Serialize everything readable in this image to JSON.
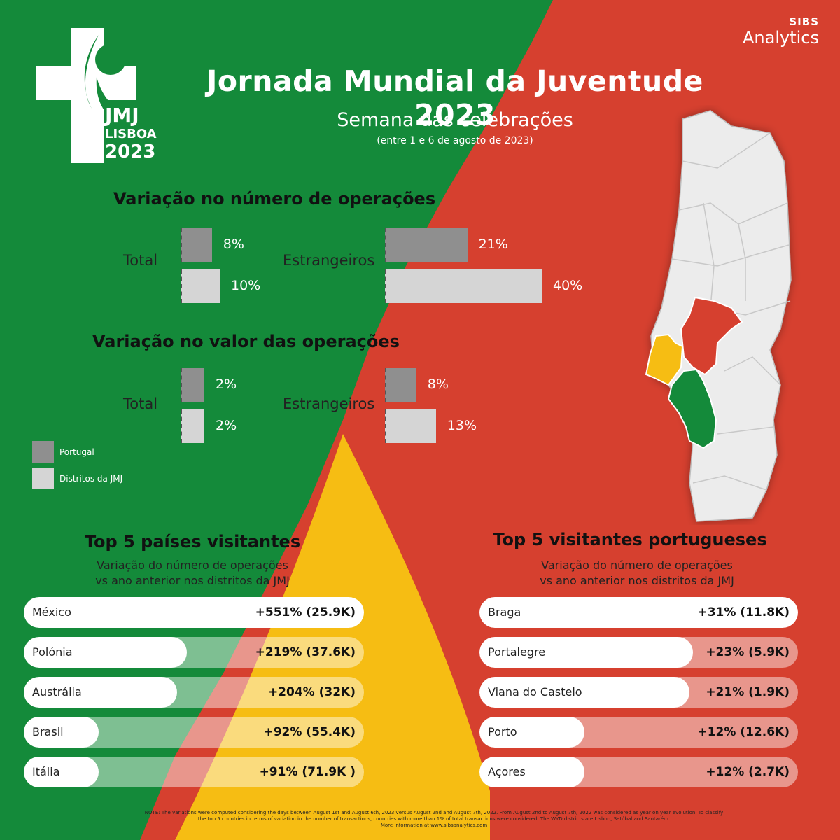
{
  "colors": {
    "green": "#148a3a",
    "red": "#d6402f",
    "yellow": "#f6bd13",
    "portugal": "#8f8f8f",
    "districts": "#d5d5d5",
    "pill_track_left": "rgba(255,255,255,0.45)",
    "pill_track_right": "rgba(255,255,255,0.45)"
  },
  "header": {
    "title": "Jornada Mundial da Juventude 2023",
    "subtitle": "Semana das celebrações",
    "date_range": "(entre 1 e 6 de agosto de 2023)"
  },
  "logo": {
    "line1": "JMJ",
    "line2": "LISBOA",
    "line3": "2023",
    "icon": "cross-rosary-icon"
  },
  "brand": {
    "line1": "SIBS",
    "line2": "Analytics"
  },
  "chart_data": [
    {
      "type": "bar",
      "title": "Variação no número de operações",
      "groups": [
        {
          "label": "Total",
          "series": [
            {
              "name": "Portugal",
              "value": 8,
              "text": "8%"
            },
            {
              "name": "Distritos da JMJ",
              "value": 10,
              "text": "10%"
            }
          ]
        },
        {
          "label": "Estrangeiros",
          "series": [
            {
              "name": "Portugal",
              "value": 21,
              "text": "21%"
            },
            {
              "name": "Distritos da JMJ",
              "value": 40,
              "text": "40%"
            }
          ]
        }
      ]
    },
    {
      "type": "bar",
      "title": "Variação no valor das operações",
      "groups": [
        {
          "label": "Total",
          "series": [
            {
              "name": "Portugal",
              "value": 2,
              "text": "2%"
            },
            {
              "name": "Distritos da JMJ",
              "value": 2,
              "text": "2%"
            }
          ]
        },
        {
          "label": "Estrangeiros",
          "series": [
            {
              "name": "Portugal",
              "value": 8,
              "text": "8%"
            },
            {
              "name": "Distritos da JMJ",
              "value": 13,
              "text": "13%"
            }
          ]
        }
      ]
    }
  ],
  "legend": [
    {
      "label": "Portugal",
      "color": "#8f8f8f"
    },
    {
      "label": "Distritos da JMJ",
      "color": "#d5d5d5"
    }
  ],
  "top_countries": {
    "title": "Top 5 países visitantes",
    "subtitle_line1": "Variação do número de operações",
    "subtitle_line2": "vs ano anterior nos distritos da JMJ",
    "items": [
      {
        "name": "México",
        "value": "+551%  (25.9K)",
        "fraction": 1.0
      },
      {
        "name": "Polónia",
        "value": "+219%  (37.6K)",
        "fraction": 0.48
      },
      {
        "name": "Austrália",
        "value": "+204% (32K)",
        "fraction": 0.45
      },
      {
        "name": "Brasil",
        "value": "+92% (55.4K)",
        "fraction": 0.22
      },
      {
        "name": "Itália",
        "value": "+91% (71.9K )",
        "fraction": 0.22
      }
    ]
  },
  "top_districts": {
    "title": "Top 5 visitantes portugueses",
    "subtitle_line1": "Variação do número de operações",
    "subtitle_line2": "vs ano anterior nos distritos da JMJ",
    "items": [
      {
        "name": "Braga",
        "value": "+31% (11.8K)",
        "fraction": 1.0
      },
      {
        "name": "Portalegre",
        "value": "+23% (5.9K)",
        "fraction": 0.67
      },
      {
        "name": "Viana do Castelo",
        "value": "+21% (1.9K)",
        "fraction": 0.66
      },
      {
        "name": "Porto",
        "value": "+12% (12.6K)",
        "fraction": 0.33
      },
      {
        "name": "Açores",
        "value": "+12% (2.7K)",
        "fraction": 0.33
      }
    ]
  },
  "map": {
    "icon": "portugal-map-icon",
    "highlight_districts": [
      "Lisboa",
      "Setúbal",
      "Santarém"
    ]
  },
  "note": {
    "line1": "NOTE:  The variations were computed considering the days between August 1st and August 6th, 2023 versus August 2nd and August 7th, 2022. From August 2nd to August 7th, 2022 was considered as year on year evolution. To classify",
    "line2": "the top 5 countries in terms of variation in the number of transactions, countries with more than 1% of total transactions were considered.  The WYD districts are Lisbon, Setúbal and Santarém.",
    "line3": "More information at www.sibsanalytics.com"
  }
}
